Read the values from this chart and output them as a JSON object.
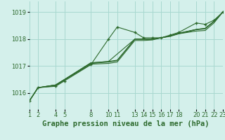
{
  "background_color": "#d4f0eb",
  "grid_color": "#a8d8d0",
  "line_color": "#2d6a2d",
  "title": "Graphe pression niveau de la mer (hPa)",
  "xlim": [
    1,
    23
  ],
  "ylim": [
    1015.4,
    1019.4
  ],
  "yticks": [
    1016,
    1017,
    1018,
    1019
  ],
  "xticks": [
    1,
    2,
    4,
    5,
    8,
    10,
    11,
    13,
    14,
    15,
    16,
    17,
    18,
    20,
    21,
    22,
    23
  ],
  "series": [
    {
      "x": [
        1,
        2,
        4,
        5,
        8,
        10,
        11,
        13,
        14,
        15,
        16,
        17,
        18,
        20,
        21,
        22,
        23
      ],
      "y": [
        1015.7,
        1016.2,
        1016.25,
        1016.45,
        1017.05,
        1018.0,
        1018.45,
        1018.25,
        1018.05,
        1018.05,
        1018.05,
        1018.15,
        1018.25,
        1018.6,
        1018.55,
        1018.7,
        1019.0
      ],
      "marker": "+"
    },
    {
      "x": [
        1,
        2,
        4,
        5,
        8,
        10,
        11,
        13,
        14,
        15,
        16,
        17,
        18,
        20,
        21,
        22,
        23
      ],
      "y": [
        1015.7,
        1016.2,
        1016.27,
        1016.48,
        1017.07,
        1017.1,
        1017.15,
        1017.95,
        1017.95,
        1017.97,
        1018.05,
        1018.12,
        1018.2,
        1018.3,
        1018.32,
        1018.6,
        1019.0
      ],
      "marker": null
    },
    {
      "x": [
        1,
        2,
        4,
        5,
        8,
        10,
        11,
        13,
        14,
        15,
        16,
        17,
        18,
        20,
        21,
        22,
        23
      ],
      "y": [
        1015.7,
        1016.2,
        1016.3,
        1016.5,
        1017.1,
        1017.15,
        1017.2,
        1018.0,
        1018.0,
        1018.0,
        1018.05,
        1018.1,
        1018.2,
        1018.35,
        1018.38,
        1018.65,
        1019.0
      ],
      "marker": null
    },
    {
      "x": [
        1,
        2,
        4,
        5,
        8,
        10,
        11,
        13,
        14,
        15,
        16,
        17,
        18,
        20,
        21,
        22,
        23
      ],
      "y": [
        1015.7,
        1016.2,
        1016.3,
        1016.5,
        1017.12,
        1017.17,
        1017.22,
        1018.0,
        1018.0,
        1018.0,
        1018.05,
        1018.12,
        1018.22,
        1018.36,
        1018.4,
        1018.66,
        1019.0
      ],
      "marker": null
    },
    {
      "x": [
        1,
        2,
        4,
        5,
        8,
        10,
        13,
        14,
        15,
        16,
        17,
        18,
        20,
        21,
        22,
        23
      ],
      "y": [
        1015.7,
        1016.2,
        1016.3,
        1016.5,
        1017.12,
        1017.17,
        1018.0,
        1018.0,
        1018.0,
        1018.05,
        1018.12,
        1018.22,
        1018.36,
        1018.4,
        1018.66,
        1019.0
      ],
      "marker": null
    }
  ],
  "title_fontsize": 7.5,
  "tick_fontsize": 6,
  "title_color": "#2d6a2d",
  "tick_color": "#2d6a2d"
}
